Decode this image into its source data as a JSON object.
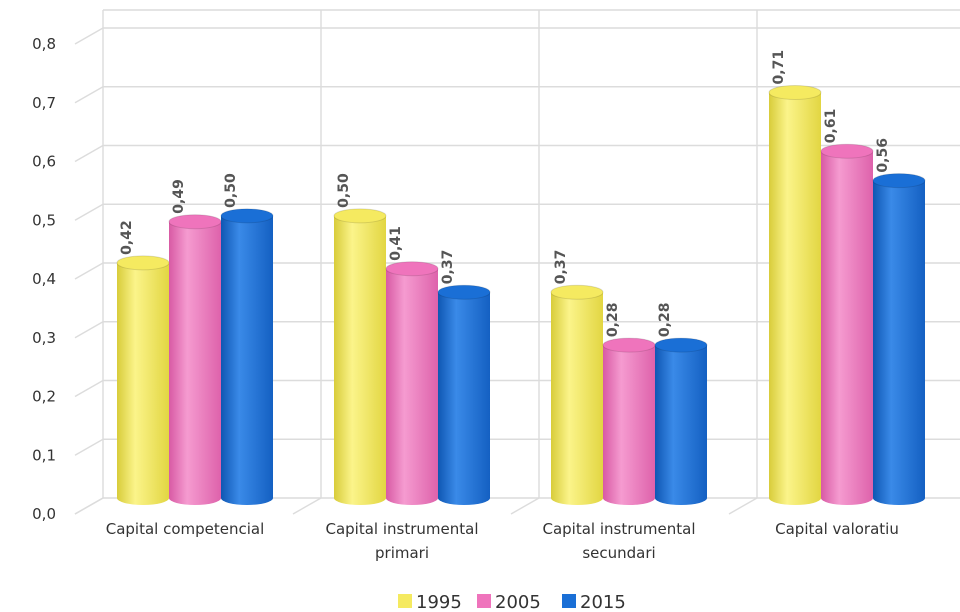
{
  "chart_data": {
    "type": "bar",
    "categories": [
      [
        "Capital competencial"
      ],
      [
        "Capital instrumental",
        "primari"
      ],
      [
        "Capital instrumental",
        "secundari"
      ],
      [
        "Capital valoratiu"
      ]
    ],
    "series": [
      {
        "name": "1995",
        "color": "#f5ea60",
        "values": [
          0.42,
          0.5,
          0.37,
          0.71
        ],
        "labels": [
          "0,42",
          "0,50",
          "0,37",
          "0,71"
        ]
      },
      {
        "name": "2005",
        "color": "#ef74bc",
        "values": [
          0.49,
          0.41,
          0.28,
          0.61
        ],
        "labels": [
          "0,49",
          "0,41",
          "0,28",
          "0,61"
        ]
      },
      {
        "name": "2015",
        "color": "#1a6fd6",
        "values": [
          0.5,
          0.37,
          0.28,
          0.56
        ],
        "labels": [
          "0,50",
          "0,37",
          "0,28",
          "0,56"
        ]
      }
    ],
    "yticks": [
      "0,0",
      "0,1",
      "0,2",
      "0,3",
      "0,4",
      "0,5",
      "0,6",
      "0,7",
      "0,8"
    ],
    "ylim": [
      0,
      0.8
    ],
    "grid": true,
    "legend": "bottom",
    "title": "",
    "xlabel": "",
    "ylabel": ""
  }
}
